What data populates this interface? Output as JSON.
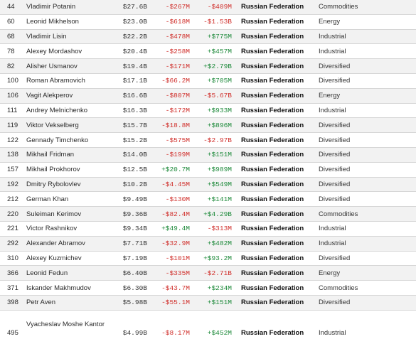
{
  "colors": {
    "negative": "#d0302c",
    "positive": "#1e8a3b",
    "row_alt": "#f2f2f2",
    "divider": "#d6d6d6"
  },
  "rows": [
    {
      "rank": "44",
      "name": "Vladimir Potanin",
      "net_worth": "$27.6B",
      "last_change": "-$267M",
      "ytd_change": "-$409M",
      "country": "Russian Federation",
      "industry": "Commodities"
    },
    {
      "rank": "60",
      "name": "Leonid Mikhelson",
      "net_worth": "$23.0B",
      "last_change": "-$618M",
      "ytd_change": "-$1.53B",
      "country": "Russian Federation",
      "industry": "Energy"
    },
    {
      "rank": "68",
      "name": "Vladimir Lisin",
      "net_worth": "$22.2B",
      "last_change": "-$478M",
      "ytd_change": "+$775M",
      "country": "Russian Federation",
      "industry": "Industrial"
    },
    {
      "rank": "78",
      "name": "Alexey Mordashov",
      "net_worth": "$20.4B",
      "last_change": "-$258M",
      "ytd_change": "+$457M",
      "country": "Russian Federation",
      "industry": "Industrial"
    },
    {
      "rank": "82",
      "name": "Alisher Usmanov",
      "net_worth": "$19.4B",
      "last_change": "-$171M",
      "ytd_change": "+$2.79B",
      "country": "Russian Federation",
      "industry": "Diversified"
    },
    {
      "rank": "100",
      "name": "Roman Abramovich",
      "net_worth": "$17.1B",
      "last_change": "-$66.2M",
      "ytd_change": "+$705M",
      "country": "Russian Federation",
      "industry": "Diversified"
    },
    {
      "rank": "106",
      "name": "Vagit Alekperov",
      "net_worth": "$16.6B",
      "last_change": "-$807M",
      "ytd_change": "-$5.67B",
      "country": "Russian Federation",
      "industry": "Energy"
    },
    {
      "rank": "111",
      "name": "Andrey Melnichenko",
      "net_worth": "$16.3B",
      "last_change": "-$172M",
      "ytd_change": "+$933M",
      "country": "Russian Federation",
      "industry": "Industrial"
    },
    {
      "rank": "119",
      "name": "Viktor Vekselberg",
      "net_worth": "$15.7B",
      "last_change": "-$18.8M",
      "ytd_change": "+$896M",
      "country": "Russian Federation",
      "industry": "Diversified"
    },
    {
      "rank": "122",
      "name": "Gennady Timchenko",
      "net_worth": "$15.2B",
      "last_change": "-$575M",
      "ytd_change": "-$2.97B",
      "country": "Russian Federation",
      "industry": "Diversified"
    },
    {
      "rank": "138",
      "name": "Mikhail Fridman",
      "net_worth": "$14.0B",
      "last_change": "-$199M",
      "ytd_change": "+$151M",
      "country": "Russian Federation",
      "industry": "Diversified"
    },
    {
      "rank": "157",
      "name": "Mikhail Prokhorov",
      "net_worth": "$12.5B",
      "last_change": "+$20.7M",
      "ytd_change": "+$989M",
      "country": "Russian Federation",
      "industry": "Diversified"
    },
    {
      "rank": "192",
      "name": "Dmitry Rybolovlev",
      "net_worth": "$10.2B",
      "last_change": "-$4.45M",
      "ytd_change": "+$549M",
      "country": "Russian Federation",
      "industry": "Diversified"
    },
    {
      "rank": "212",
      "name": "German Khan",
      "net_worth": "$9.49B",
      "last_change": "-$130M",
      "ytd_change": "+$141M",
      "country": "Russian Federation",
      "industry": "Diversified"
    },
    {
      "rank": "220",
      "name": "Suleiman Kerimov",
      "net_worth": "$9.36B",
      "last_change": "-$82.4M",
      "ytd_change": "+$4.29B",
      "country": "Russian Federation",
      "industry": "Commodities"
    },
    {
      "rank": "221",
      "name": "Victor Rashnikov",
      "net_worth": "$9.34B",
      "last_change": "+$49.4M",
      "ytd_change": "-$313M",
      "country": "Russian Federation",
      "industry": "Industrial"
    },
    {
      "rank": "292",
      "name": "Alexander Abramov",
      "net_worth": "$7.71B",
      "last_change": "-$32.9M",
      "ytd_change": "+$482M",
      "country": "Russian Federation",
      "industry": "Industrial"
    },
    {
      "rank": "310",
      "name": "Alexey Kuzmichev",
      "net_worth": "$7.19B",
      "last_change": "-$101M",
      "ytd_change": "+$93.2M",
      "country": "Russian Federation",
      "industry": "Diversified"
    },
    {
      "rank": "366",
      "name": "Leonid Fedun",
      "net_worth": "$6.40B",
      "last_change": "-$335M",
      "ytd_change": "-$2.71B",
      "country": "Russian Federation",
      "industry": "Energy"
    },
    {
      "rank": "371",
      "name": "Iskander Makhmudov",
      "net_worth": "$6.30B",
      "last_change": "-$43.7M",
      "ytd_change": "+$234M",
      "country": "Russian Federation",
      "industry": "Commodities"
    },
    {
      "rank": "398",
      "name": "Petr Aven",
      "net_worth": "$5.98B",
      "last_change": "-$55.1M",
      "ytd_change": "+$151M",
      "country": "Russian Federation",
      "industry": "Diversified"
    },
    {
      "rank": "495",
      "name": "Vyacheslav Moshe Kantor",
      "net_worth": "$4.99B",
      "last_change": "-$8.17M",
      "ytd_change": "+$452M",
      "country": "Russian Federation",
      "industry": "Industrial"
    }
  ]
}
